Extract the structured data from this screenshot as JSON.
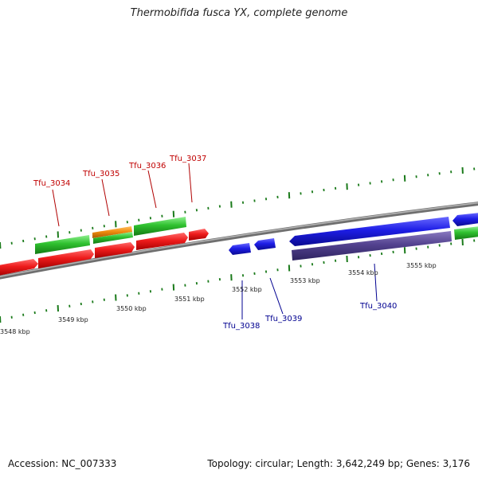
{
  "title": "Thermobifida fusca YX, complete genome",
  "footer": {
    "accession": "Accession: NC_007333",
    "summary": "Topology: circular; Length: 3,642,249 bp; Genes: 3,176"
  },
  "colors": {
    "forward_cds": "#ee1c1c",
    "forward_rna": "#2fc12f",
    "forward_misc": "#f08c10",
    "reverse_cds": "#1e1ee6",
    "reverse_rna": "#53428f",
    "reverse_misc": "#2fc12f",
    "forward_label": "#c00000",
    "reverse_label": "#000090",
    "tick": "#1a7a1a",
    "backbone": "#8a8a8a"
  },
  "axis": {
    "unit": "kbp",
    "labels": [
      {
        "kbp": 3548,
        "text": "3548 kbp"
      },
      {
        "kbp": 3549,
        "text": "3549 kbp"
      },
      {
        "kbp": 3550,
        "text": "3550 kbp"
      },
      {
        "kbp": 3551,
        "text": "3551 kbp"
      },
      {
        "kbp": 3552,
        "text": "3552 kbp"
      },
      {
        "kbp": 3553,
        "text": "3553 kbp"
      },
      {
        "kbp": 3554,
        "text": "3554 kbp"
      },
      {
        "kbp": 3555,
        "text": "3555 kbp"
      }
    ]
  },
  "genes": [
    {
      "id": "Tfu_3034",
      "label": "Tfu_3034",
      "strand": "forward"
    },
    {
      "id": "Tfu_3035",
      "label": "Tfu_3035",
      "strand": "forward"
    },
    {
      "id": "Tfu_3036",
      "label": "Tfu_3036",
      "strand": "forward"
    },
    {
      "id": "Tfu_3037",
      "label": "Tfu_3037",
      "strand": "forward"
    },
    {
      "id": "Tfu_3038",
      "label": "Tfu_3038",
      "strand": "reverse"
    },
    {
      "id": "Tfu_3039",
      "label": "Tfu_3039",
      "strand": "reverse"
    },
    {
      "id": "Tfu_3040",
      "label": "Tfu_3040",
      "strand": "reverse"
    }
  ]
}
